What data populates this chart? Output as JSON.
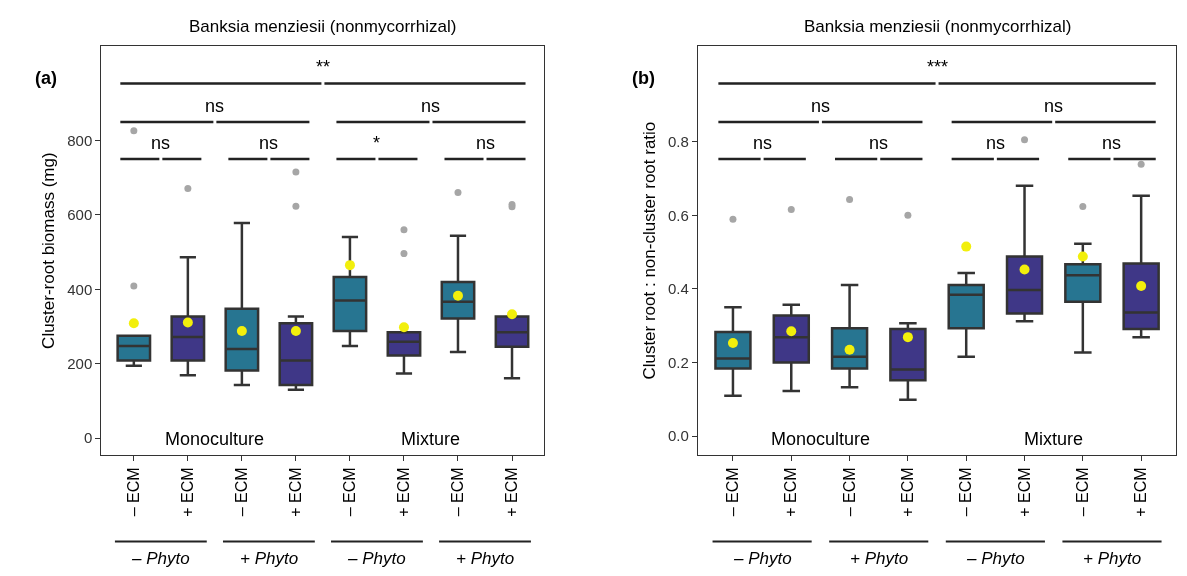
{
  "chart_data": [
    {
      "type": "box",
      "title": "Banksia menziesii (nonmycorrhizal)",
      "ylabel": "Cluster-root biomass (mg)",
      "categories": [
        "– ECM",
        "+ ECM",
        "– ECM",
        "+ ECM",
        "– ECM",
        "+ ECM",
        "– ECM",
        "+ ECM"
      ],
      "colors": [
        "#277591",
        "#3f3787",
        "#277591",
        "#3f3787",
        "#277591",
        "#3f3787",
        "#277591",
        "#3f3787"
      ],
      "boxes": [
        {
          "low": 195,
          "q1": 209,
          "median": 248,
          "q3": 275,
          "high": 275,
          "mean": 309,
          "outliers": [
            826,
            409
          ]
        },
        {
          "low": 169,
          "q1": 209,
          "median": 272,
          "q3": 327,
          "high": 486,
          "mean": 311,
          "outliers": [
            671
          ]
        },
        {
          "low": 143,
          "q1": 182,
          "median": 240,
          "q3": 348,
          "high": 578,
          "mean": 288
        },
        {
          "low": 130,
          "q1": 143,
          "median": 209,
          "q3": 309,
          "high": 327,
          "mean": 288,
          "outliers": [
            715,
            623
          ]
        },
        {
          "low": 248,
          "q1": 288,
          "median": 370,
          "q3": 433,
          "high": 541,
          "mean": 465
        },
        {
          "low": 174,
          "q1": 222,
          "median": 259,
          "q3": 285,
          "high": 285,
          "mean": 298,
          "outliers": [
            560,
            496
          ]
        },
        {
          "low": 232,
          "q1": 322,
          "median": 367,
          "q3": 420,
          "high": 544,
          "mean": 383,
          "outliers": [
            660
          ]
        },
        {
          "low": 161,
          "q1": 246,
          "median": 285,
          "q3": 327,
          "high": 327,
          "mean": 333,
          "outliers": [
            628,
            622
          ]
        }
      ],
      "ylim": [
        -45,
        1053
      ],
      "yticks": [
        0,
        200,
        400,
        600,
        800
      ],
      "annotations": [
        "**",
        "ns",
        "ns",
        "ns",
        "ns",
        "*",
        "ns",
        "Monoculture",
        "Mixture",
        "– Phyto",
        "+ Phyto",
        "– Phyto",
        "+ Phyto",
        "(a)"
      ]
    },
    {
      "type": "box",
      "title": "Banksia menziesii (nonmycorrhizal)",
      "ylabel": "Cluster root : non-cluster root ratio",
      "categories": [
        "– ECM",
        "+ ECM",
        "– ECM",
        "+ ECM",
        "– ECM",
        "+ ECM",
        "– ECM",
        "+ ECM"
      ],
      "colors": [
        "#277591",
        "#3f3787",
        "#277591",
        "#3f3787",
        "#277591",
        "#3f3787",
        "#277591",
        "#3f3787"
      ],
      "boxes": [
        {
          "low": 0.11,
          "q1": 0.184,
          "median": 0.211,
          "q3": 0.283,
          "high": 0.35,
          "mean": 0.253,
          "outliers": [
            0.589
          ]
        },
        {
          "low": 0.123,
          "q1": 0.2,
          "median": 0.269,
          "q3": 0.328,
          "high": 0.357,
          "mean": 0.285,
          "outliers": [
            0.616
          ]
        },
        {
          "low": 0.133,
          "q1": 0.184,
          "median": 0.216,
          "q3": 0.293,
          "high": 0.411,
          "mean": 0.235,
          "outliers": [
            0.643
          ]
        },
        {
          "low": 0.099,
          "q1": 0.152,
          "median": 0.181,
          "q3": 0.291,
          "high": 0.307,
          "mean": 0.269,
          "outliers": [
            0.6
          ]
        },
        {
          "low": 0.216,
          "q1": 0.293,
          "median": 0.384,
          "q3": 0.411,
          "high": 0.443,
          "mean": 0.515
        },
        {
          "low": 0.312,
          "q1": 0.333,
          "median": 0.397,
          "q3": 0.488,
          "high": 0.68,
          "mean": 0.453,
          "outliers": [
            0.805
          ]
        },
        {
          "low": 0.227,
          "q1": 0.365,
          "median": 0.437,
          "q3": 0.467,
          "high": 0.523,
          "mean": 0.488,
          "outliers": [
            0.624
          ]
        },
        {
          "low": 0.269,
          "q1": 0.291,
          "median": 0.336,
          "q3": 0.469,
          "high": 0.653,
          "mean": 0.408,
          "outliers": [
            0.739
          ]
        }
      ],
      "ylim": [
        -0.051,
        1.059
      ],
      "yticks": [
        {
          "value": 0,
          "label": "0.0"
        },
        0.2,
        0.4,
        0.6,
        0.8
      ],
      "annotations": [
        "***",
        "ns",
        "ns",
        "ns",
        "ns",
        "ns",
        "ns",
        "Monoculture",
        "Mixture",
        "– Phyto",
        "+ Phyto",
        "– Phyto",
        "+ Phyto",
        "(b)"
      ]
    }
  ]
}
